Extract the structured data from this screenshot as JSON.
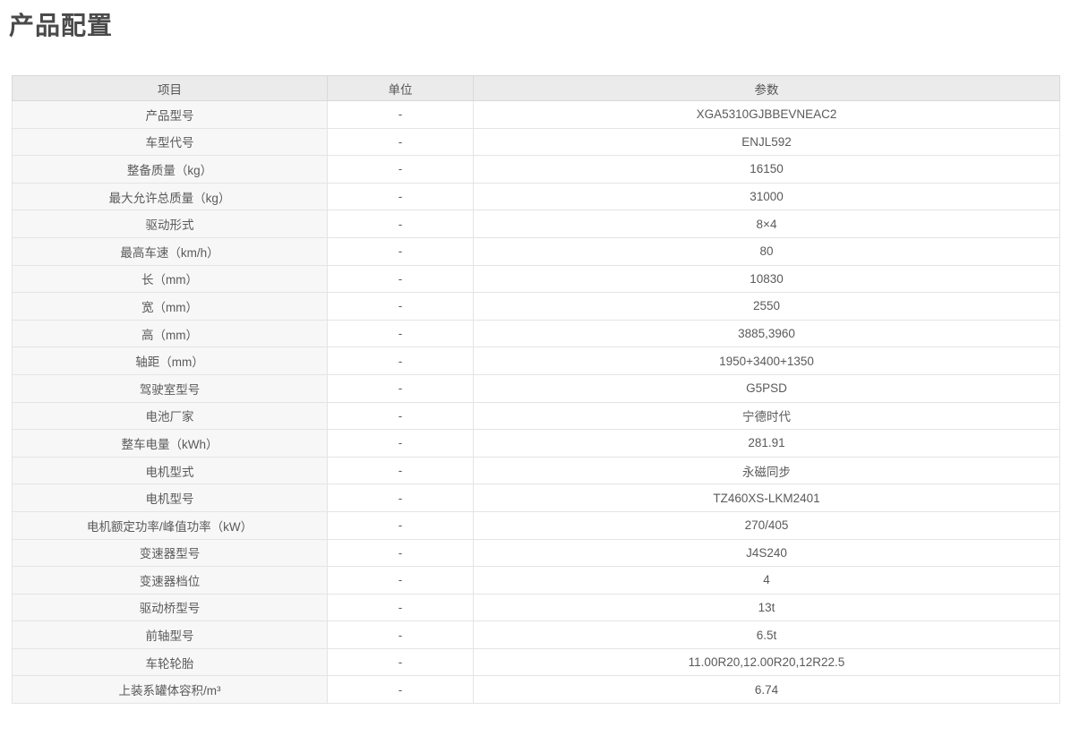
{
  "page": {
    "title": "产品配置"
  },
  "table": {
    "columns": [
      "项目",
      "单位",
      "参数"
    ],
    "rows": [
      {
        "item": "产品型号",
        "unit": "-",
        "value": "XGA5310GJBBEVNEAC2"
      },
      {
        "item": "车型代号",
        "unit": "-",
        "value": "ENJL592"
      },
      {
        "item": "整备质量（kg）",
        "unit": "-",
        "value": "16150"
      },
      {
        "item": "最大允许总质量（kg）",
        "unit": "-",
        "value": "31000"
      },
      {
        "item": "驱动形式",
        "unit": "-",
        "value": "8×4"
      },
      {
        "item": "最高车速（km/h）",
        "unit": "-",
        "value": "80"
      },
      {
        "item": "长（mm）",
        "unit": "-",
        "value": "10830"
      },
      {
        "item": "宽（mm）",
        "unit": "-",
        "value": "2550"
      },
      {
        "item": "高（mm）",
        "unit": "-",
        "value": "3885,3960"
      },
      {
        "item": "轴距（mm）",
        "unit": "-",
        "value": "1950+3400+1350"
      },
      {
        "item": "驾驶室型号",
        "unit": "-",
        "value": "G5PSD"
      },
      {
        "item": "电池厂家",
        "unit": "-",
        "value": "宁德时代"
      },
      {
        "item": "整车电量（kWh）",
        "unit": "-",
        "value": "281.91"
      },
      {
        "item": "电机型式",
        "unit": "-",
        "value": "永磁同步"
      },
      {
        "item": "电机型号",
        "unit": "-",
        "value": "TZ460XS-LKM2401"
      },
      {
        "item": "电机额定功率/峰值功率（kW）",
        "unit": "-",
        "value": "270/405"
      },
      {
        "item": "变速器型号",
        "unit": "-",
        "value": "J4S240"
      },
      {
        "item": "变速器档位",
        "unit": "-",
        "value": "4"
      },
      {
        "item": "驱动桥型号",
        "unit": "-",
        "value": "13t"
      },
      {
        "item": "前轴型号",
        "unit": "-",
        "value": "6.5t"
      },
      {
        "item": "车轮轮胎",
        "unit": "-",
        "value": "11.00R20,12.00R20,12R22.5"
      },
      {
        "item": "上装系罐体容积/m³",
        "unit": "-",
        "value": "6.74"
      }
    ]
  }
}
